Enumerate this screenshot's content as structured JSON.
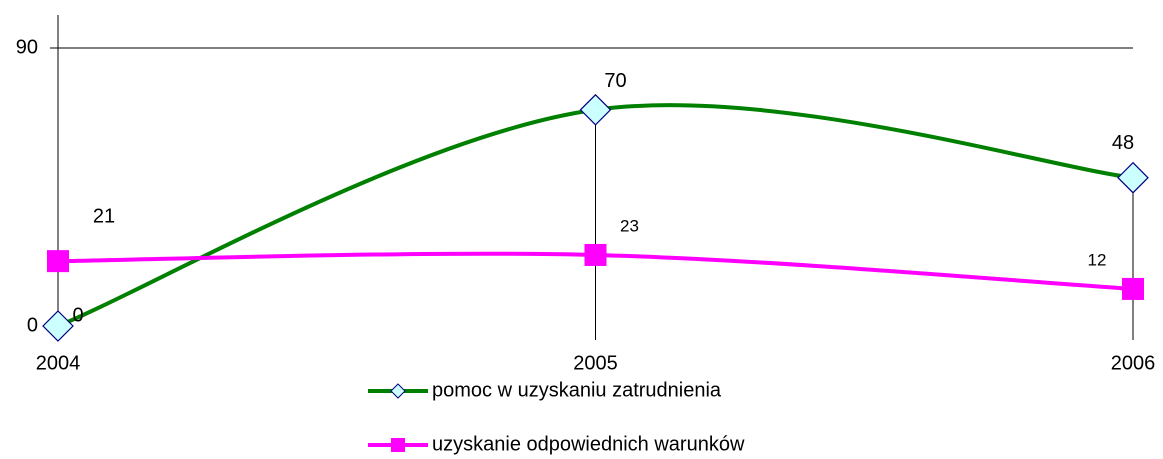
{
  "chart_data": {
    "type": "line",
    "categories": [
      "2004",
      "2005",
      "2006"
    ],
    "series": [
      {
        "name": "pomoc w uzyskaniu zatrudnienia",
        "color": "#008000",
        "marker": "diamond",
        "values": [
          0,
          70,
          48
        ]
      },
      {
        "name": "uzyskanie odpowiednich warunków",
        "color": "#ff00ff",
        "marker": "square",
        "values": [
          21,
          23,
          12
        ]
      }
    ],
    "ylim": [
      0,
      90
    ],
    "yticks": [
      0,
      90
    ],
    "grid": true,
    "smooth": true,
    "drop_lines": true,
    "legend": "bottom"
  }
}
